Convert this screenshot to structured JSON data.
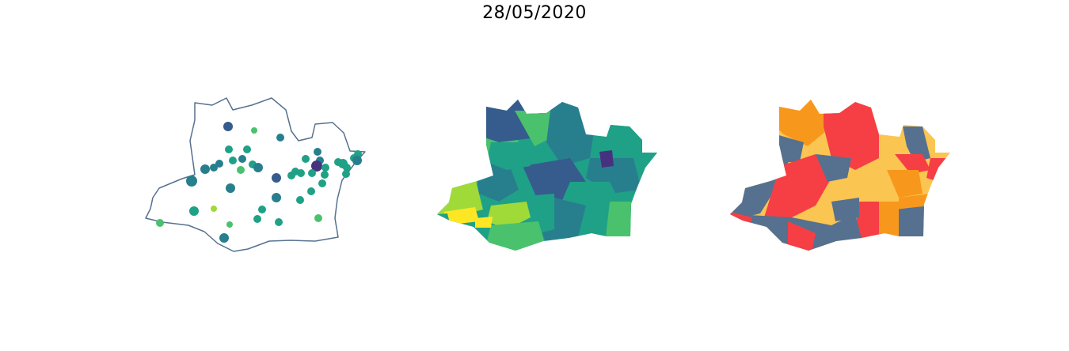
{
  "figure": {
    "title": "28/05/2020"
  },
  "palettes": {
    "viridis": [
      "#46327e",
      "#365c8d",
      "#277f8e",
      "#1fa187",
      "#4ac16d",
      "#a0da39",
      "#fde725"
    ],
    "risk": {
      "slate": "#56718f",
      "yellow": "#fbc552",
      "orange": "#f7981d",
      "red": "#f53f45"
    },
    "outline": "#56718f"
  }
}
